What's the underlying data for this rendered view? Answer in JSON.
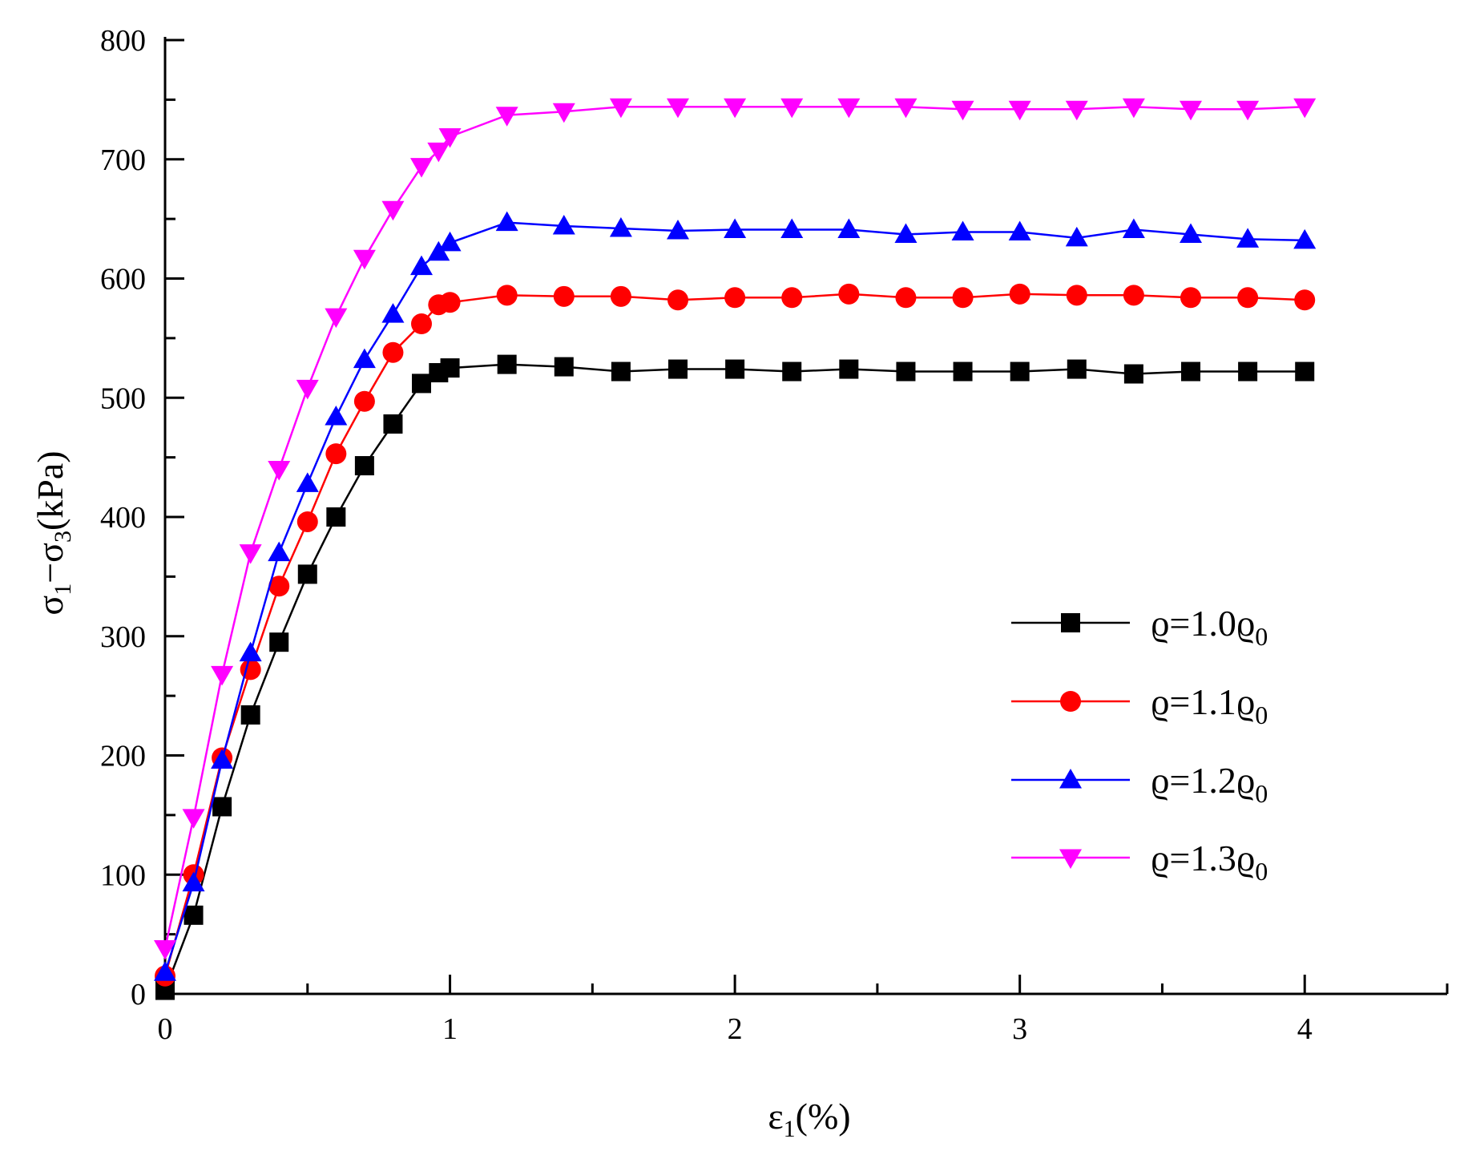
{
  "chart_data": {
    "type": "line",
    "title": "",
    "xlabel": {
      "base": "ε",
      "sub": "1",
      "tail": "(%)"
    },
    "ylabel": {
      "p1": "σ",
      "s1": "1",
      "mid": "−σ",
      "s2": "3",
      "tail": "(kPa)"
    },
    "xlim": [
      0,
      4.5
    ],
    "ylim": [
      0,
      800
    ],
    "xticks": [
      0,
      1,
      2,
      3,
      4
    ],
    "yticks": [
      0,
      100,
      200,
      300,
      400,
      500,
      600,
      700,
      800
    ],
    "grid": false,
    "legend_position": "right",
    "series": [
      {
        "name": "ρ=1.0ρ0",
        "label_main": "ϱ=1.0ϱ",
        "label_sub": "0",
        "color": "#000000",
        "marker": "square",
        "x": [
          0,
          0.1,
          0.2,
          0.3,
          0.4,
          0.5,
          0.6,
          0.7,
          0.8,
          0.9,
          0.96,
          1.0,
          1.2,
          1.4,
          1.6,
          1.8,
          2.0,
          2.2,
          2.4,
          2.6,
          2.8,
          3.0,
          3.2,
          3.4,
          3.6,
          3.8,
          4.0
        ],
        "y": [
          3,
          66,
          157,
          234,
          295,
          352,
          400,
          443,
          478,
          512,
          521,
          525,
          528,
          526,
          522,
          524,
          524,
          522,
          524,
          522,
          522,
          522,
          524,
          520,
          522,
          522,
          522
        ]
      },
      {
        "name": "ρ=1.1ρ0",
        "label_main": "ϱ=1.1ϱ",
        "label_sub": "0",
        "color": "#ff0000",
        "marker": "circle",
        "x": [
          0,
          0.1,
          0.2,
          0.3,
          0.4,
          0.5,
          0.6,
          0.7,
          0.8,
          0.9,
          0.96,
          1.0,
          1.2,
          1.4,
          1.6,
          1.8,
          2.0,
          2.2,
          2.4,
          2.6,
          2.8,
          3.0,
          3.2,
          3.4,
          3.6,
          3.8,
          4.0
        ],
        "y": [
          15,
          100,
          198,
          272,
          342,
          396,
          453,
          497,
          538,
          562,
          578,
          580,
          586,
          585,
          585,
          582,
          584,
          584,
          587,
          584,
          584,
          587,
          586,
          586,
          584,
          584,
          582
        ]
      },
      {
        "name": "ρ=1.2ρ0",
        "label_main": "ϱ=1.2ϱ",
        "label_sub": "0",
        "color": "#0000ff",
        "marker": "triangle-up",
        "x": [
          0,
          0.1,
          0.2,
          0.3,
          0.4,
          0.5,
          0.6,
          0.7,
          0.8,
          0.9,
          0.96,
          1.0,
          1.2,
          1.4,
          1.6,
          1.8,
          2.0,
          2.2,
          2.4,
          2.6,
          2.8,
          3.0,
          3.2,
          3.4,
          3.6,
          3.8,
          4.0
        ],
        "y": [
          18,
          93,
          196,
          286,
          370,
          428,
          484,
          532,
          570,
          610,
          622,
          630,
          647,
          644,
          642,
          640,
          641,
          641,
          641,
          637,
          639,
          639,
          634,
          641,
          637,
          633,
          632
        ]
      },
      {
        "name": "ρ=1.3ρ0",
        "label_main": "ϱ=1.3ϱ",
        "label_sub": "0",
        "color": "#ff00ff",
        "marker": "triangle-down",
        "x": [
          0,
          0.1,
          0.2,
          0.3,
          0.4,
          0.5,
          0.6,
          0.7,
          0.8,
          0.9,
          0.96,
          1.0,
          1.2,
          1.4,
          1.6,
          1.8,
          2.0,
          2.2,
          2.4,
          2.6,
          2.8,
          3.0,
          3.2,
          3.4,
          3.6,
          3.8,
          4.0
        ],
        "y": [
          38,
          148,
          268,
          370,
          440,
          508,
          568,
          617,
          658,
          694,
          707,
          719,
          737,
          740,
          744,
          744,
          744,
          744,
          744,
          744,
          742,
          742,
          742,
          744,
          742,
          742,
          744
        ]
      }
    ]
  }
}
